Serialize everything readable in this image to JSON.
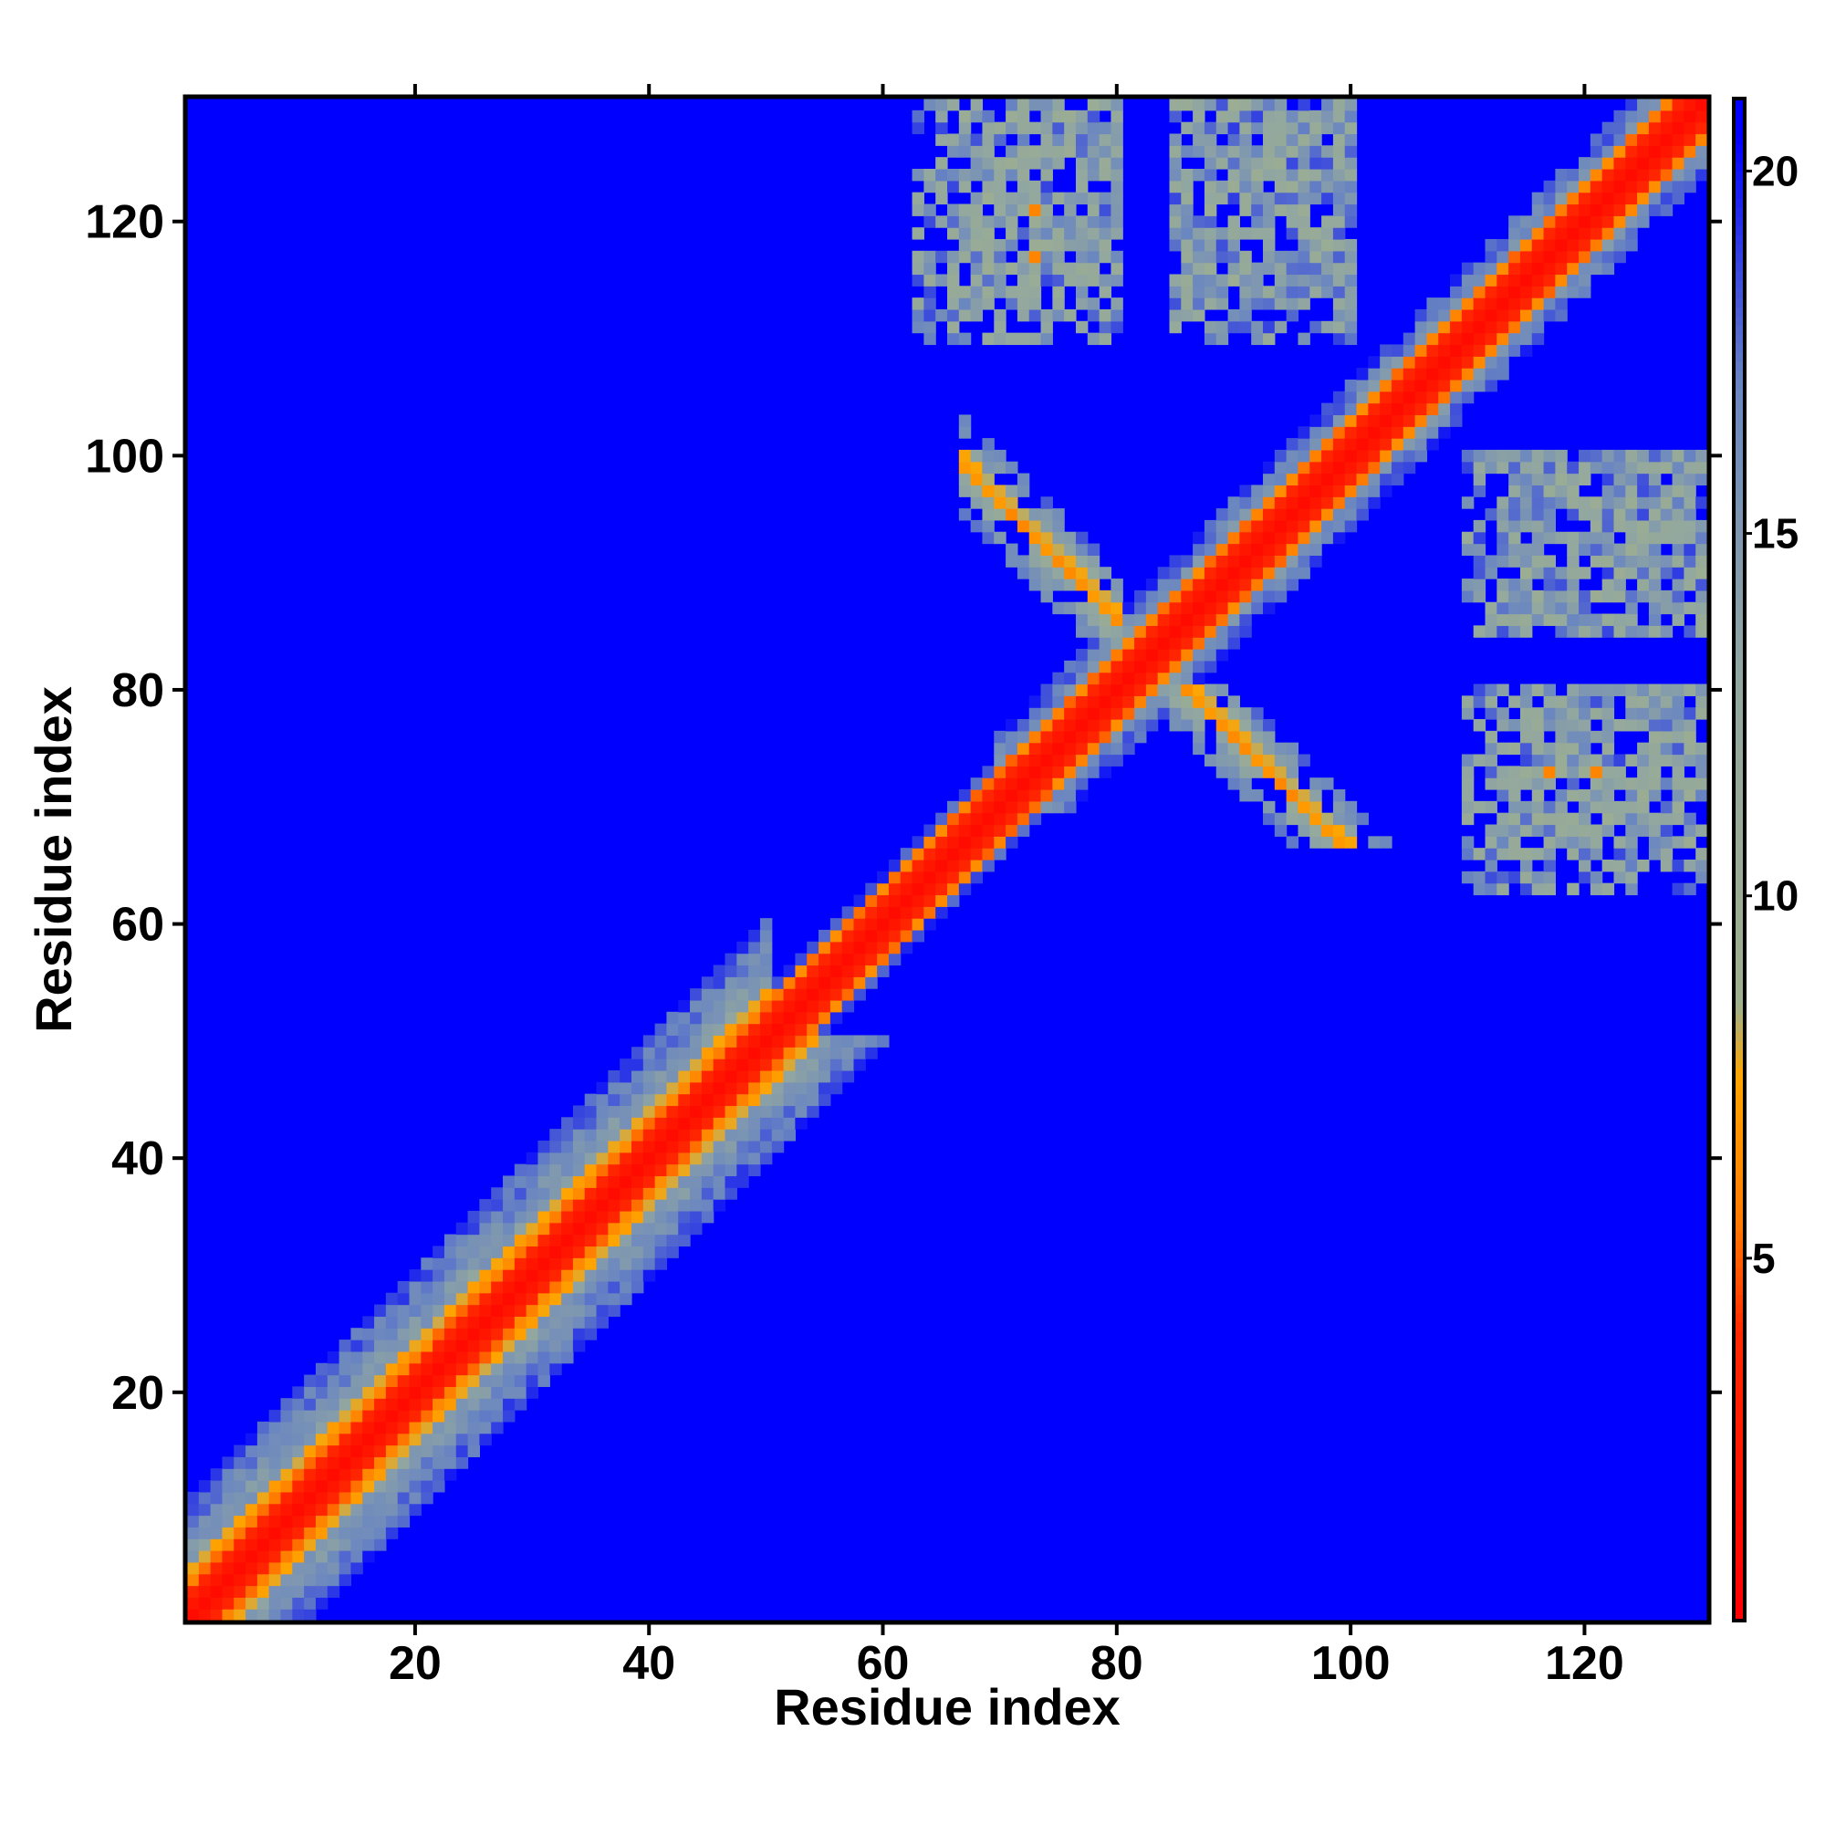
{
  "chart_data": {
    "type": "heatmap",
    "title": "",
    "xlabel": "Residue index",
    "ylabel": "Residue index",
    "xlim": [
      1,
      130
    ],
    "ylim": [
      1,
      130
    ],
    "x_ticks": [
      20,
      40,
      60,
      80,
      100,
      120
    ],
    "y_ticks": [
      20,
      40,
      60,
      80,
      100,
      120
    ],
    "grid": false,
    "matrix_size": 130,
    "symmetric": true,
    "colorbar": {
      "placement": "right",
      "range": [
        0,
        21
      ],
      "ticks": [
        5,
        10,
        15,
        20
      ],
      "stops": [
        {
          "value": 0,
          "color": "#ff0000"
        },
        {
          "value": 4,
          "color": "#ff2a00"
        },
        {
          "value": 5.5,
          "color": "#ff7a00"
        },
        {
          "value": 7.5,
          "color": "#ffa500"
        },
        {
          "value": 8.5,
          "color": "#9fb08d"
        },
        {
          "value": 13,
          "color": "#92a7a0"
        },
        {
          "value": 17,
          "color": "#6b87c0"
        },
        {
          "value": 20.5,
          "color": "#0000ff"
        }
      ]
    },
    "background_color": "#0000ff",
    "features": [
      {
        "kind": "diagonal",
        "from": 1,
        "to": 130,
        "value": 1
      },
      {
        "kind": "near_diagonal_band",
        "from": 1,
        "to": 50,
        "halfwidth": 10,
        "note": "broad helical contact band"
      },
      {
        "kind": "near_diagonal_band",
        "from": 50,
        "to": 70,
        "halfwidth": 4
      },
      {
        "kind": "near_diagonal_band",
        "from": 70,
        "to": 130,
        "halfwidth": 6
      },
      {
        "kind": "antiparallel_contact",
        "i_range": [
          67,
          80
        ],
        "j_sum": 166,
        "value": 6
      },
      {
        "kind": "contact_patch",
        "i_range": [
          66,
          80
        ],
        "j_range": [
          113,
          130
        ],
        "value": 14
      },
      {
        "kind": "contact_patch",
        "i_range": [
          86,
          100
        ],
        "j_range": [
          113,
          130
        ],
        "value": 14
      },
      {
        "kind": "contact_patch",
        "i_range": [
          110,
          130
        ],
        "j_range": [
          85,
          100
        ],
        "value": 15
      },
      {
        "kind": "contact_patch",
        "i_range": [
          110,
          130
        ],
        "j_range": [
          63,
          80
        ],
        "value": 15
      },
      {
        "kind": "point_contact",
        "i": 73,
        "j": 121,
        "value": 6
      },
      {
        "kind": "point_contact",
        "i": 73,
        "j": 117,
        "value": 6
      }
    ]
  }
}
